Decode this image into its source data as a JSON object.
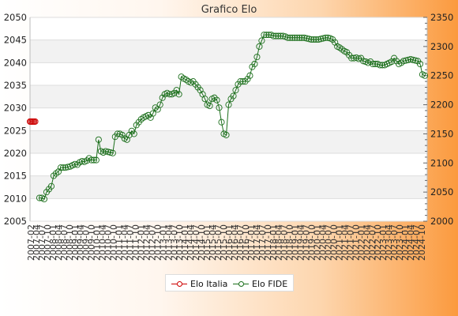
{
  "chart_data": {
    "type": "line",
    "title": "Grafico Elo",
    "left_axis": {
      "min": 2005,
      "max": 2050,
      "step": 5,
      "ticks": [
        "2005",
        "2010",
        "2015",
        "2020",
        "2025",
        "2030",
        "2035",
        "2040",
        "2045",
        "2050"
      ]
    },
    "right_axis": {
      "min": 2000,
      "max": 2350,
      "step": 50,
      "ticks": [
        "2000",
        "2050",
        "2100",
        "2150",
        "2200",
        "2250",
        "2300",
        "2350"
      ]
    },
    "x_labels": [
      "2007-02",
      "2007-04",
      "2007-07",
      "2007-10",
      "2008-01",
      "2008-04",
      "2008-07",
      "2008-10",
      "2009-01",
      "2009-04",
      "2009-07",
      "2009-10",
      "2010-01",
      "2010-04",
      "2010-07",
      "2010-10",
      "2011-01",
      "2011-04",
      "2011-07",
      "2011-10",
      "2012-01",
      "2012-04",
      "2012-07",
      "2012-10",
      "2013-01",
      "2013-04",
      "2013-07",
      "2013-10",
      "2014-01",
      "2014-04",
      "2014-07",
      "2014-10",
      "2015-01",
      "2015-04",
      "2015-07",
      "2015-10",
      "2016-01",
      "2016-04",
      "2016-07",
      "2016-10",
      "2017-01",
      "2017-04",
      "2017-07",
      "2017-10",
      "2018-01",
      "2018-04",
      "2018-07",
      "2018-10",
      "2019-01",
      "2019-04",
      "2019-07",
      "2019-10",
      "2020-01",
      "2020-04",
      "2020-07",
      "2020-10",
      "2021-01",
      "2021-04",
      "2021-07",
      "2021-10",
      "2022-01",
      "2022-04",
      "2022-07",
      "2022-10",
      "2023-01",
      "2023-04",
      "2023-07",
      "2023-10",
      "2024-01",
      "2024-04",
      "2024-07",
      "2024-10"
    ],
    "grid": true,
    "legend_position": "bottom-center",
    "series": [
      {
        "name": "Elo Italia",
        "axis": "left",
        "color": "#cc0000",
        "values": [
          2027,
          2027,
          2027,
          2027,
          2027,
          2027
        ]
      },
      {
        "name": "Elo FIDE",
        "axis": "right",
        "color": "#1a6e1a",
        "values": [
          2040,
          2040,
          2038,
          2050,
          2055,
          2060,
          2078,
          2082,
          2085,
          2092,
          2092,
          2092,
          2093,
          2094,
          2096,
          2098,
          2097,
          2101,
          2103,
          2102,
          2104,
          2108,
          2105,
          2105,
          2105,
          2140,
          2120,
          2118,
          2120,
          2119,
          2118,
          2117,
          2145,
          2150,
          2150,
          2148,
          2142,
          2140,
          2148,
          2155,
          2150,
          2165,
          2170,
          2175,
          2178,
          2180,
          2182,
          2178,
          2185,
          2195,
          2192,
          2200,
          2212,
          2218,
          2220,
          2218,
          2218,
          2220,
          2225,
          2218,
          2248,
          2245,
          2243,
          2240,
          2238,
          2240,
          2235,
          2230,
          2225,
          2218,
          2210,
          2200,
          2198,
          2210,
          2212,
          2208,
          2195,
          2170,
          2150,
          2148,
          2200,
          2210,
          2215,
          2225,
          2235,
          2240,
          2240,
          2240,
          2244,
          2250,
          2265,
          2270,
          2282,
          2300,
          2310,
          2320,
          2320,
          2320,
          2320,
          2318,
          2318,
          2318,
          2318,
          2318,
          2317,
          2315,
          2315,
          2315,
          2315,
          2315,
          2315,
          2315,
          2315,
          2314,
          2313,
          2312,
          2312,
          2312,
          2312,
          2313,
          2314,
          2315,
          2315,
          2314,
          2312,
          2307,
          2300,
          2298,
          2295,
          2292,
          2290,
          2285,
          2280,
          2280,
          2281,
          2279,
          2280,
          2275,
          2274,
          2272,
          2274,
          2270,
          2270,
          2270,
          2268,
          2268,
          2268,
          2270,
          2272,
          2274,
          2280,
          2275,
          2270,
          2272,
          2275,
          2276,
          2277,
          2278,
          2277,
          2276,
          2275,
          2270,
          2252,
          2250
        ]
      }
    ]
  }
}
